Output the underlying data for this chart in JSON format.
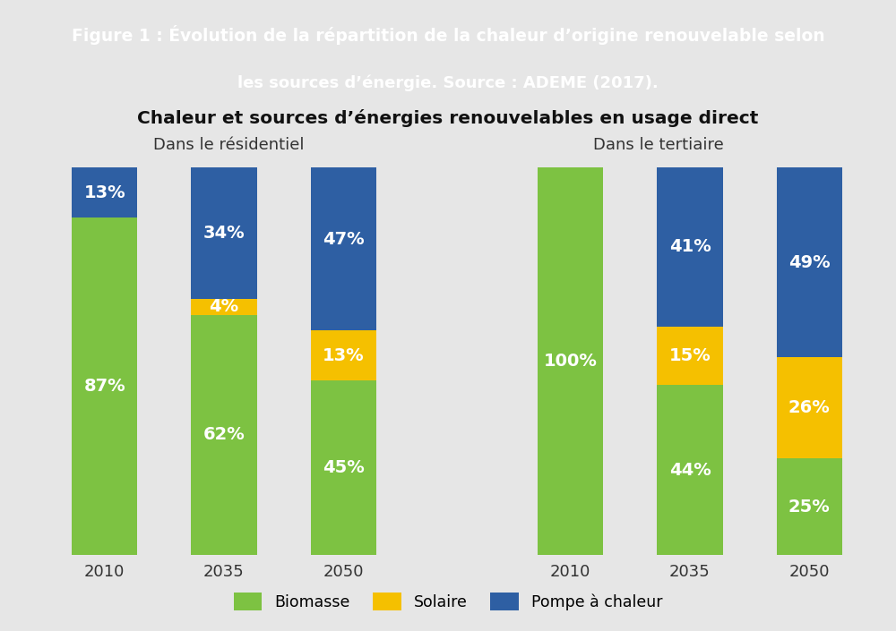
{
  "title_line1_normal": "Figure 1 : ",
  "title_line1_bold": "Évolution de la répartition de la chaleur d’origine renouvelable selon",
  "title_line2_bold": "les sources d’énergie.",
  "title_line2_source": " Source : ADEME (2017).",
  "chart_title": "Chaleur et sources d’énergies renouvelables en usage direct",
  "subtitle_left": "Dans le résidentiel",
  "subtitle_right": "Dans le tertiaire",
  "header_bg": "#29adb8",
  "bg_color": "#e6e6e6",
  "years": [
    "2010",
    "2035",
    "2050"
  ],
  "color_biomasse": "#7dc242",
  "color_solaire": "#f5c000",
  "color_pompe": "#2e5fa3",
  "residentiel": {
    "biomasse": [
      87,
      62,
      45
    ],
    "solaire": [
      0,
      4,
      13
    ],
    "pompe": [
      13,
      34,
      47
    ]
  },
  "tertiaire": {
    "biomasse": [
      100,
      44,
      25
    ],
    "solaire": [
      0,
      15,
      26
    ],
    "pompe": [
      0,
      41,
      49
    ]
  },
  "legend_labels": [
    "Biomasse",
    "Solaire",
    "Pompe à chaleur"
  ],
  "bar_width": 0.55,
  "label_fontsize": 14,
  "tick_fontsize": 13
}
